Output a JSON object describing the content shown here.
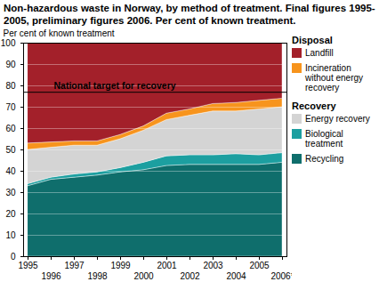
{
  "chart_data": {
    "type": "area",
    "stacked": true,
    "title": "Non-hazardous waste in Norway, by method of treatment. Final figures 1995-2005, preliminary figures 2006. Per cent of known treatment.",
    "y_label": "Per cent of known treatment",
    "categories": [
      "1995",
      "1996",
      "1997",
      "1998",
      "1999",
      "2000",
      "2001",
      "2002",
      "2003",
      "2004",
      "2005",
      "2006*"
    ],
    "series": [
      {
        "name": "Recycling",
        "group": "Recovery",
        "color": "#0f6e6c",
        "values": [
          33,
          36,
          37,
          38,
          39.5,
          40.5,
          42.5,
          43,
          43,
          43,
          43,
          44
        ]
      },
      {
        "name": "Biological treatment",
        "group": "Recovery",
        "color": "#1c9fa0",
        "values": [
          1,
          1,
          1.5,
          1.5,
          2,
          3.5,
          4.5,
          4.5,
          4.5,
          5,
          4.5,
          4.5
        ]
      },
      {
        "name": "Energy recovery",
        "group": "Recovery",
        "color": "#d4d4d4",
        "values": [
          16,
          14,
          13.5,
          12.5,
          13.5,
          15,
          17,
          18.5,
          20.5,
          20,
          21.5,
          21.5
        ]
      },
      {
        "name": "Incineration without energy recovery",
        "group": "Disposal",
        "color": "#f7941d",
        "values": [
          3,
          2.5,
          2,
          2,
          2,
          2,
          3,
          3,
          3.5,
          4,
          4,
          4
        ]
      },
      {
        "name": "Landfill",
        "group": "Disposal",
        "color": "#a3202a",
        "values": [
          47,
          46.5,
          46,
          46,
          43,
          39,
          33,
          31,
          28.5,
          28,
          27,
          26
        ]
      }
    ],
    "annotations": [
      {
        "text": "National target for recovery",
        "y": 77
      }
    ],
    "ylim": [
      0,
      100
    ],
    "yticks": [
      0,
      10,
      20,
      30,
      40,
      50,
      60,
      70,
      80,
      90,
      100
    ],
    "grid": true
  }
}
